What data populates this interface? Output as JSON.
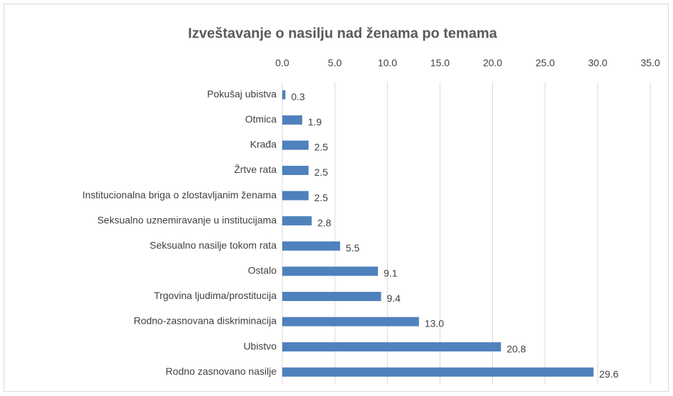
{
  "chart_data": {
    "type": "bar",
    "orientation": "horizontal",
    "title": "Izveštavanje o nasilju nad ženama po temama",
    "categories": [
      "Pokušaj ubistva",
      "Otmica",
      "Krađa",
      "Žrtve rata",
      "Institucionalna briga o zlostavljanim ženama",
      "Seksualno uznemiravanje u institucijama",
      "Seksualno nasilje tokom rata",
      "Ostalo",
      "Trgovina ljudima/prostitucija",
      "Rodno-zasnovana diskriminacija",
      "Ubistvo",
      "Rodno zasnovano nasilje"
    ],
    "values": [
      0.3,
      1.9,
      2.5,
      2.5,
      2.5,
      2.8,
      5.5,
      9.1,
      9.4,
      13.0,
      20.8,
      29.6
    ],
    "value_labels": [
      "0.3",
      "1.9",
      "2.5",
      "2.5",
      "2.5",
      "2.8",
      "5.5",
      "9.1",
      "9.4",
      "13.0",
      "20.8",
      "29.6"
    ],
    "color": "#4f81bd",
    "xlim": [
      0,
      35
    ],
    "xticks": [
      {
        "value": 0,
        "label": "0.0"
      },
      {
        "value": 5,
        "label": "5.0"
      },
      {
        "value": 10,
        "label": "10.0"
      },
      {
        "value": 15,
        "label": "15.0"
      },
      {
        "value": 20,
        "label": "20.0"
      },
      {
        "value": 25,
        "label": "25.0"
      },
      {
        "value": 30,
        "label": "30.0"
      },
      {
        "value": 35,
        "label": "35.0"
      }
    ],
    "grid": true
  }
}
